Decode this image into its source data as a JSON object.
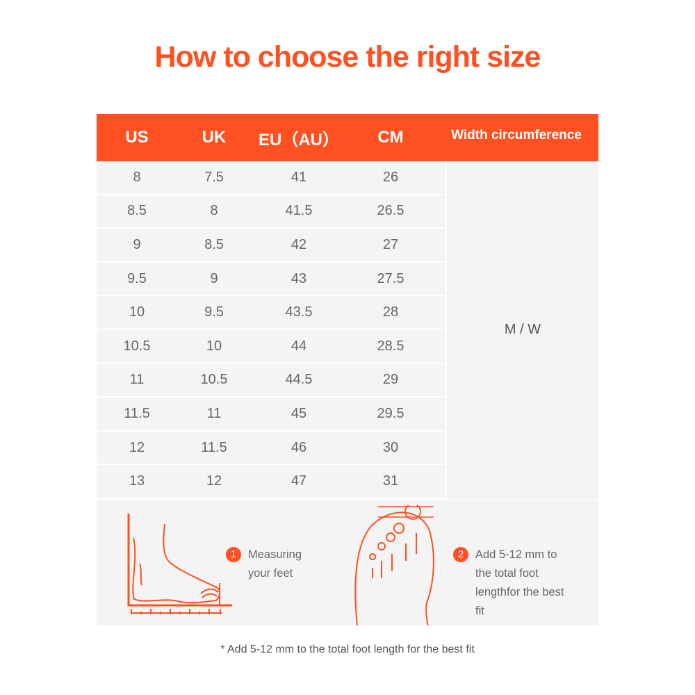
{
  "title": "How to choose the right size",
  "table": {
    "headers": [
      "US",
      "UK",
      "EU（AU）",
      "CM",
      "Width circumference"
    ],
    "rows": [
      [
        "8",
        "7.5",
        "41",
        "26"
      ],
      [
        "8.5",
        "8",
        "41.5",
        "26.5"
      ],
      [
        "9",
        "8.5",
        "42",
        "27"
      ],
      [
        "9.5",
        "9",
        "43",
        "27.5"
      ],
      [
        "10",
        "9.5",
        "43.5",
        "28"
      ],
      [
        "10.5",
        "10",
        "44",
        "28.5"
      ],
      [
        "11",
        "10.5",
        "44.5",
        "29"
      ],
      [
        "11.5",
        "11",
        "45",
        "29.5"
      ],
      [
        "12",
        "11.5",
        "46",
        "30"
      ],
      [
        "13",
        "12",
        "47",
        "31"
      ]
    ],
    "width_value": "M / W"
  },
  "steps": [
    {
      "number": "1",
      "text": "Measuring your feet",
      "icon": "foot-side-measure-icon"
    },
    {
      "number": "2",
      "text": "Add 5-12 mm to the total foot lengthfor the best fit",
      "icon": "foot-top-icon"
    }
  ],
  "note": "* Add 5-12 mm to the total foot length for the best fit",
  "colors": {
    "accent": "#fe5020",
    "row_bg": "#f4f4f4"
  }
}
